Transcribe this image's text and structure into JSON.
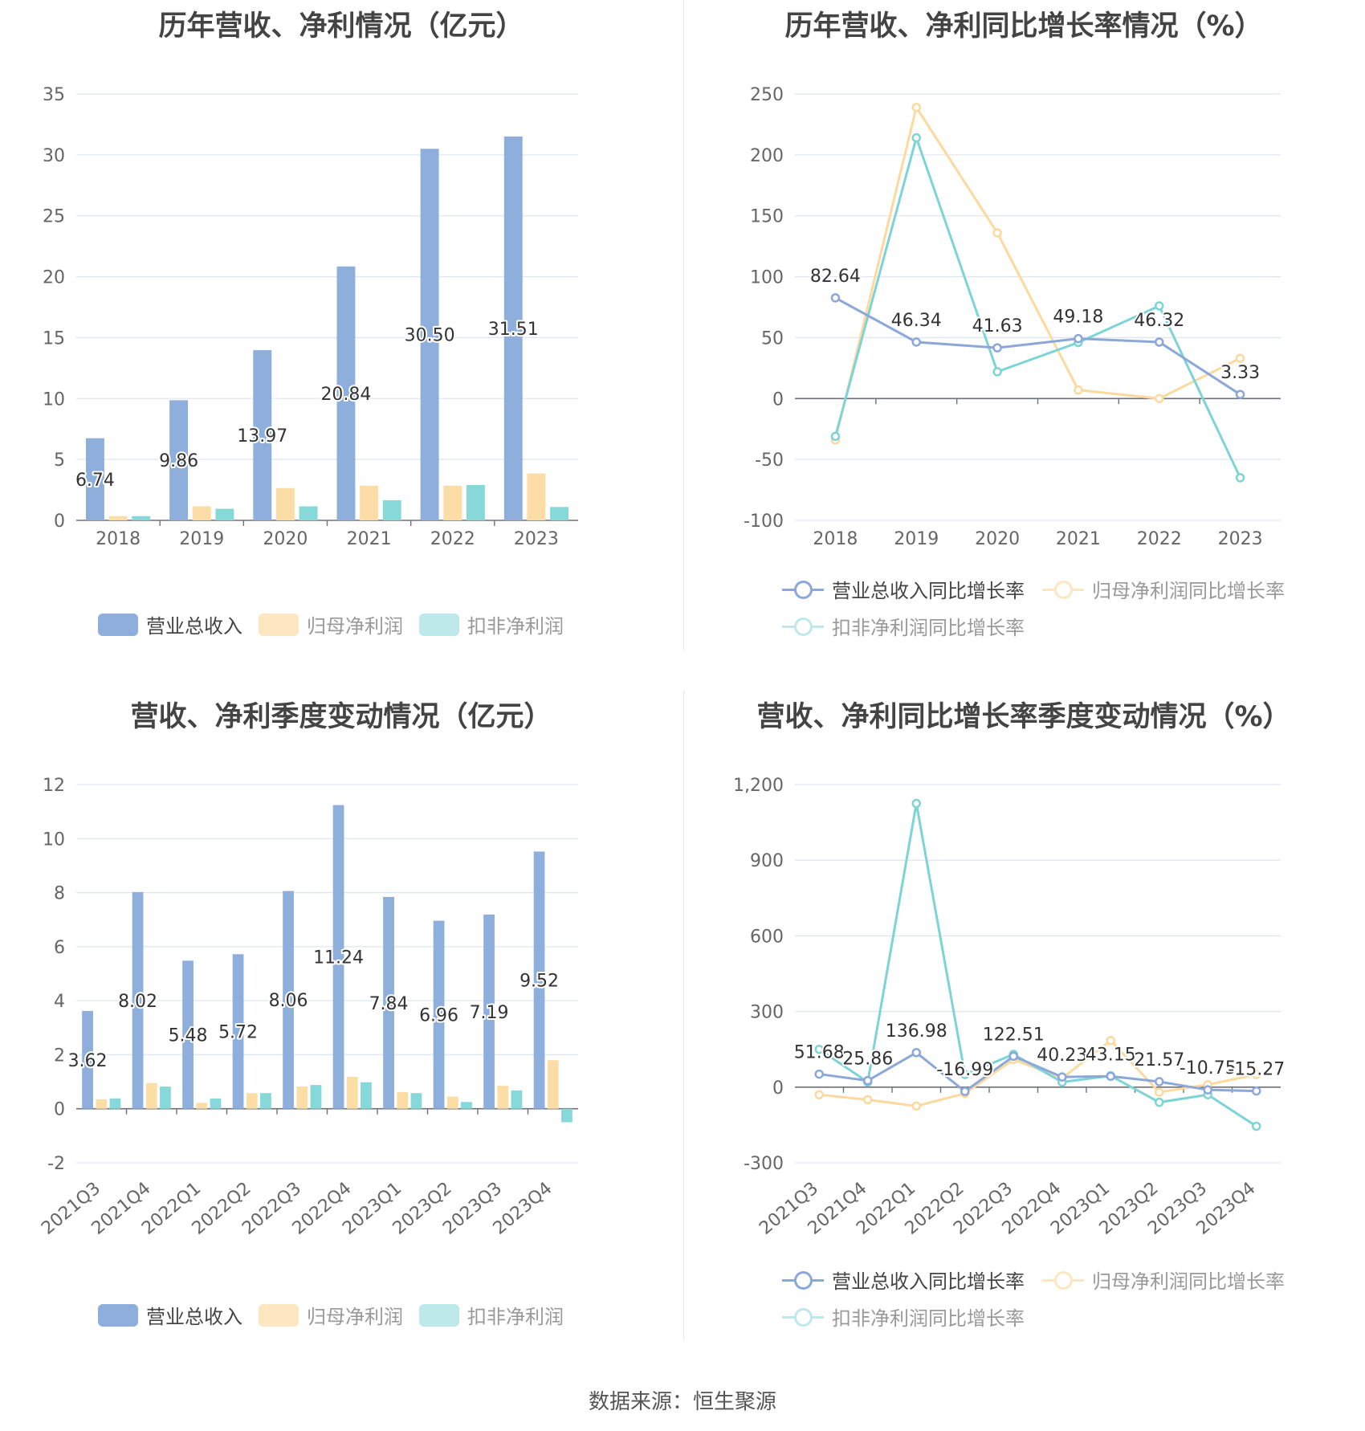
{
  "source_text": "数据来源：恒生聚源",
  "colors": {
    "revenue": "#8EAEDC",
    "net_profit": "#FDDDA6",
    "deducted_profit": "#87D8D8",
    "revenue_line": "#8CA7D9",
    "net_profit_line": "#FDD99E",
    "deducted_profit_line": "#7DD4D6"
  },
  "legend_bar": [
    "营业总收入",
    "归母净利润",
    "扣非净利润"
  ],
  "legend_line": [
    "营业总收入同比增长率",
    "归母净利润同比增长率",
    "扣非净利润同比增长率"
  ],
  "chart_data": [
    {
      "type": "bar",
      "title": "历年营收、净利情况（亿元）",
      "categories": [
        "2018",
        "2019",
        "2020",
        "2021",
        "2022",
        "2023"
      ],
      "ylim": [
        0,
        35
      ],
      "yticks": [
        "0",
        "5",
        "10",
        "15",
        "20",
        "25",
        "30",
        "35"
      ],
      "series": [
        {
          "name": "营业总收入",
          "values": [
            6.74,
            9.86,
            13.97,
            20.84,
            30.5,
            31.51
          ],
          "labels": [
            "6.74",
            "9.86",
            "13.97",
            "20.84",
            "30.50",
            "31.51"
          ]
        },
        {
          "name": "归母净利润",
          "values": [
            0.35,
            1.15,
            2.65,
            2.85,
            2.85,
            3.85
          ]
        },
        {
          "name": "扣非净利润",
          "values": [
            0.35,
            0.95,
            1.15,
            1.65,
            2.9,
            1.1
          ]
        }
      ],
      "legend": "bottom",
      "grid": true
    },
    {
      "type": "line",
      "title": "历年营收、净利同比增长率情况（%）",
      "categories": [
        "2018",
        "2019",
        "2020",
        "2021",
        "2022",
        "2023"
      ],
      "ylim": [
        -100,
        250
      ],
      "yticks": [
        "-100",
        "-50",
        "0",
        "50",
        "100",
        "150",
        "200",
        "250"
      ],
      "series": [
        {
          "name": "营业总收入同比增长率",
          "values": [
            82.64,
            46.34,
            41.63,
            49.18,
            46.32,
            3.33
          ],
          "labels": [
            "82.64",
            "46.34",
            "41.63",
            "49.18",
            "46.32",
            "3.33"
          ]
        },
        {
          "name": "归母净利润同比增长率",
          "values": [
            -34,
            239,
            136,
            7,
            0,
            33
          ]
        },
        {
          "name": "扣非净利润同比增长率",
          "values": [
            -31,
            214,
            22,
            46,
            76,
            -65
          ]
        }
      ],
      "legend": "bottom",
      "grid": true
    },
    {
      "type": "bar",
      "title": "营收、净利季度变动情况（亿元）",
      "categories": [
        "2021Q3",
        "2021Q4",
        "2022Q1",
        "2022Q2",
        "2022Q3",
        "2022Q4",
        "2023Q1",
        "2023Q2",
        "2023Q3",
        "2023Q4"
      ],
      "ylim": [
        -2,
        12
      ],
      "yticks": [
        "-2",
        "0",
        "2",
        "4",
        "6",
        "8",
        "10",
        "12"
      ],
      "series": [
        {
          "name": "营业总收入",
          "values": [
            3.62,
            8.02,
            5.48,
            5.72,
            8.06,
            11.24,
            7.84,
            6.96,
            7.19,
            9.52
          ],
          "labels": [
            "3.62",
            "8.02",
            "5.48",
            "5.72",
            "8.06",
            "11.24",
            "7.84",
            "6.96",
            "7.19",
            "9.52"
          ]
        },
        {
          "name": "归母净利润",
          "values": [
            0.35,
            0.95,
            0.22,
            0.58,
            0.82,
            1.18,
            0.62,
            0.45,
            0.85,
            1.8
          ]
        },
        {
          "name": "扣非净利润",
          "values": [
            0.38,
            0.82,
            0.38,
            0.58,
            0.88,
            0.98,
            0.58,
            0.25,
            0.68,
            -0.5
          ]
        }
      ],
      "legend": "bottom",
      "grid": true
    },
    {
      "type": "line",
      "title": "营收、净利同比增长率季度变动情况（%）",
      "categories": [
        "2021Q3",
        "2021Q4",
        "2022Q1",
        "2022Q2",
        "2022Q3",
        "2022Q4",
        "2023Q1",
        "2023Q2",
        "2023Q3",
        "2023Q4"
      ],
      "ylim": [
        -300,
        1200
      ],
      "yticks": [
        "-300",
        "0",
        "300",
        "600",
        "900",
        "1,200"
      ],
      "series": [
        {
          "name": "营业总收入同比增长率",
          "values": [
            51.68,
            25.86,
            136.98,
            -16.99,
            122.51,
            40.23,
            43.15,
            21.57,
            -10.75,
            -15.27
          ],
          "labels": [
            "51.68",
            "25.86",
            "136.98",
            "-16.99",
            "122.51",
            "40.23",
            "43.15",
            "21.57",
            "-10.75",
            "-15.27"
          ]
        },
        {
          "name": "归母净利润同比增长率",
          "values": [
            -30,
            -50,
            -75,
            -25,
            110,
            35,
            185,
            -20,
            10,
            50
          ]
        },
        {
          "name": "扣非净利润同比增长率",
          "values": [
            150,
            20,
            1125,
            50,
            130,
            20,
            45,
            -60,
            -30,
            -155
          ]
        }
      ],
      "legend": "bottom",
      "grid": true
    }
  ]
}
